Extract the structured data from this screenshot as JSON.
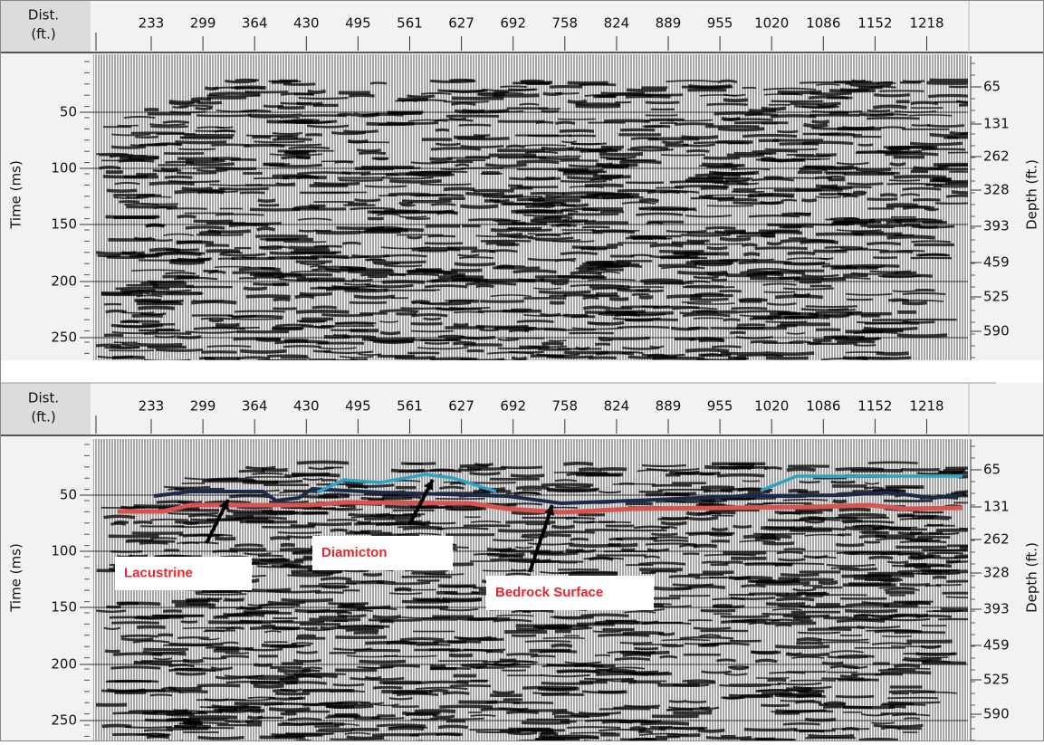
{
  "panels": [
    {
      "x_label": [
        "Dist.",
        "(ft.)"
      ],
      "x_ticks": [
        233,
        299,
        364,
        430,
        495,
        561,
        627,
        692,
        758,
        824,
        889,
        955,
        1020,
        1086,
        1152,
        1218
      ],
      "y_label": "Time (ms)",
      "y_ticks": [
        50,
        100,
        150,
        200,
        250
      ],
      "y2_label": "Depth (ft.)",
      "y2_ticks": [
        65,
        131,
        262,
        328,
        393,
        459,
        525,
        590
      ]
    },
    {
      "x_label": [
        "Dist.",
        "(ft.)"
      ],
      "x_ticks": [
        233,
        299,
        364,
        430,
        495,
        561,
        627,
        692,
        758,
        824,
        889,
        955,
        1020,
        1086,
        1152,
        1218
      ],
      "y_label": "Time (ms)",
      "y_ticks": [
        50,
        100,
        150,
        200,
        250
      ],
      "y2_label": "Depth (ft.)",
      "y2_ticks": [
        65,
        131,
        262,
        328,
        393,
        459,
        525,
        590
      ],
      "annotations": [
        "Lacustrine",
        "Diamicton",
        "Bedrock Surface"
      ]
    }
  ]
}
